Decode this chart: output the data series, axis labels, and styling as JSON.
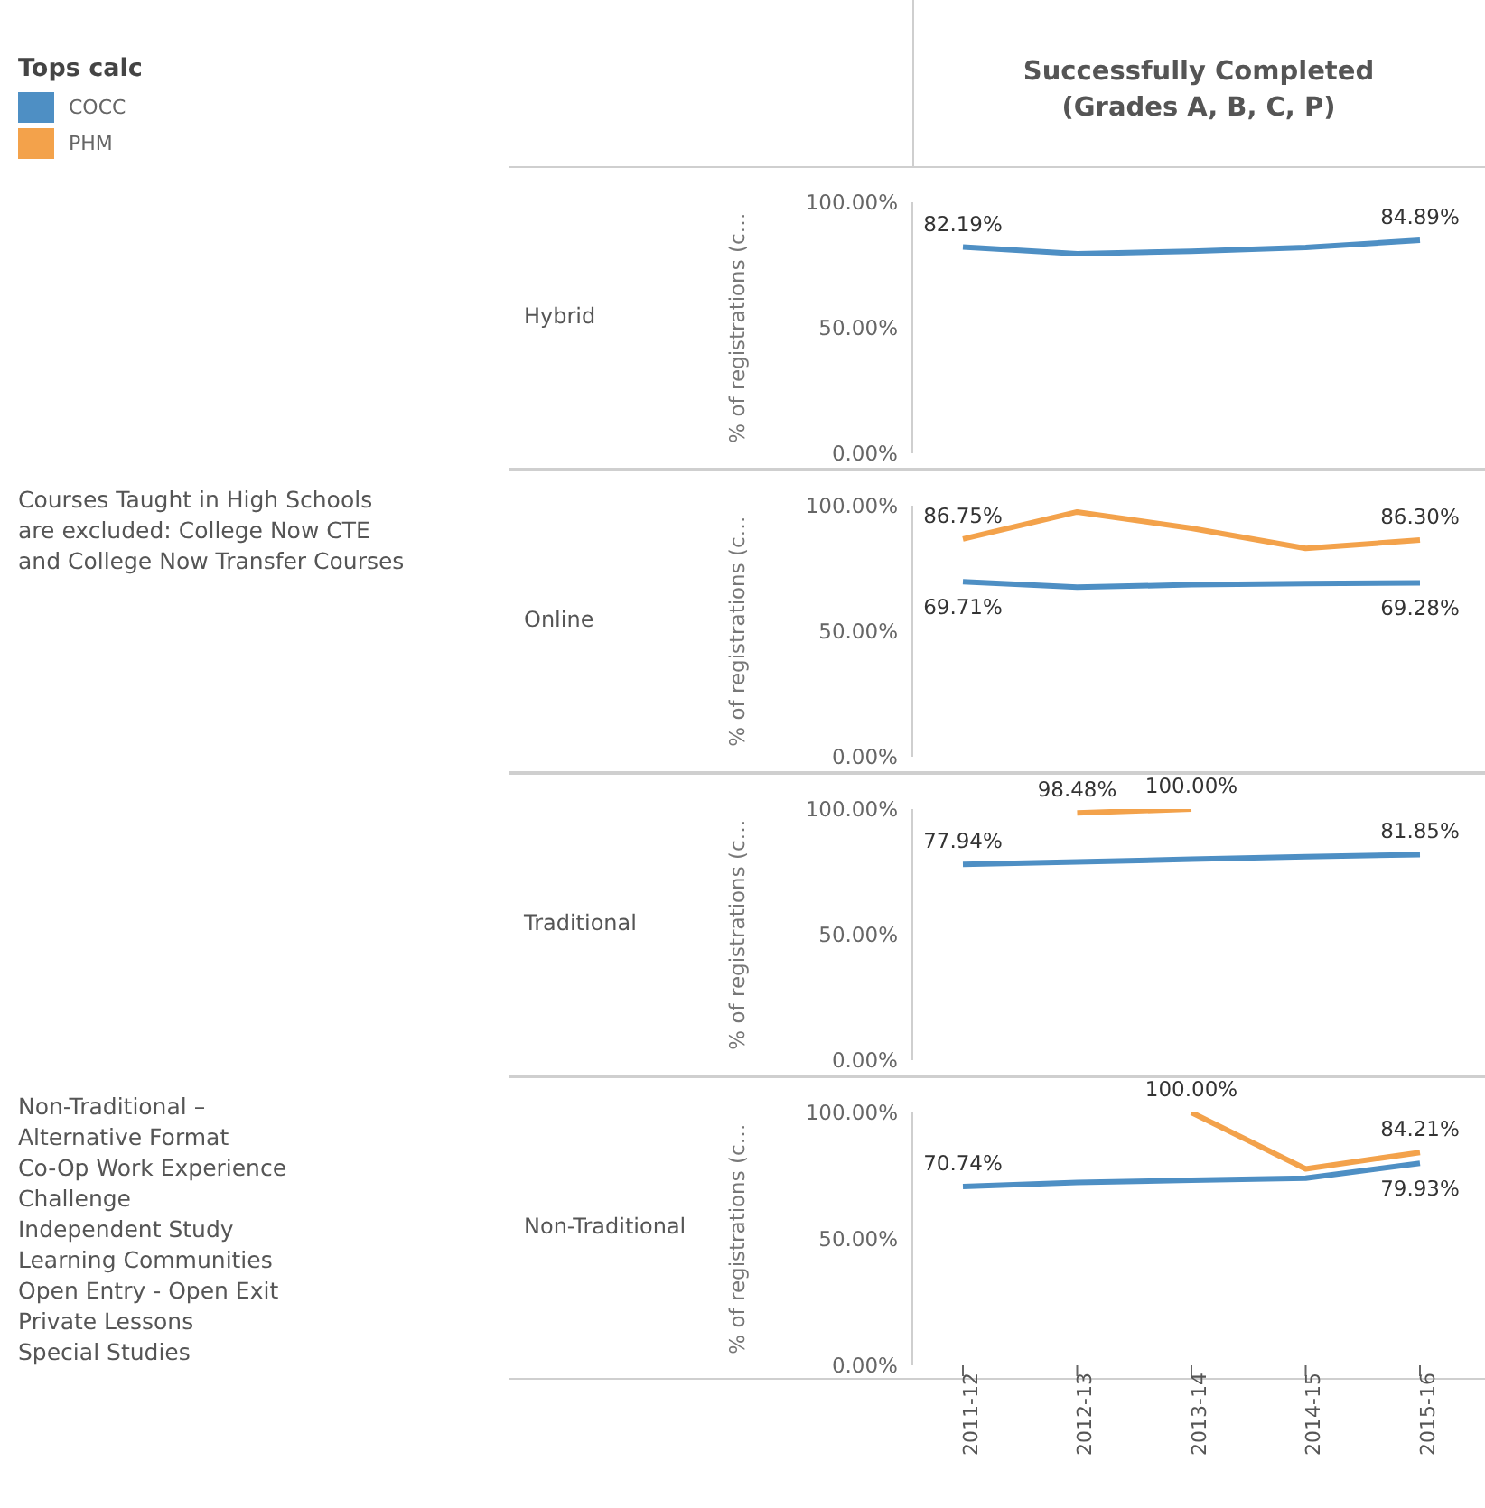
{
  "chart_data": [
    {
      "type": "line",
      "title": "Successfully Completed\n(Grades A, B, C, P)",
      "ylabel": "% of registrations (c…",
      "legend_title": "Tops calc",
      "legend": "left",
      "grid": false,
      "tick_labels": "y",
      "marker": "none",
      "categories": [
        "2011-12",
        "2012-13",
        "2013-14",
        "2014-15",
        "2015-16"
      ],
      "ylim": [
        0,
        100
      ],
      "yticks": [
        {
          "value": 0,
          "label": "0.00%"
        },
        {
          "value": 50,
          "label": "50.00%"
        },
        {
          "value": 100,
          "label": "100.00%"
        }
      ],
      "annotations": [
        "Hybrid"
      ],
      "series": [
        {
          "name": "COCC",
          "color": "#4e8fc4",
          "values": [
            82.19,
            79.5,
            80.5,
            82,
            84.89
          ],
          "value_labels": [
            "82.19%",
            null,
            null,
            null,
            "84.89%"
          ]
        },
        {
          "name": "PHM",
          "color": "#f3a24b",
          "values": [
            null,
            null,
            null,
            null,
            null
          ]
        }
      ]
    },
    {
      "type": "line",
      "ylabel": "% of registrations (c…",
      "grid": false,
      "tick_labels": "y",
      "marker": "none",
      "categories": [
        "2011-12",
        "2012-13",
        "2013-14",
        "2014-15",
        "2015-16"
      ],
      "ylim": [
        0,
        100
      ],
      "yticks": [
        {
          "value": 0,
          "label": "0.00%"
        },
        {
          "value": 50,
          "label": "50.00%"
        },
        {
          "value": 100,
          "label": "100.00%"
        }
      ],
      "annotations": [
        "Online",
        "Courses Taught in High Schools are excluded: College Now CTE and College Now Transfer Courses"
      ],
      "series": [
        {
          "color": "#4e8fc4",
          "values": [
            69.71,
            67.5,
            68.5,
            69,
            69.28
          ],
          "value_labels": [
            "69.71%",
            null,
            null,
            null,
            "69.28%"
          ]
        },
        {
          "color": "#f3a24b",
          "values": [
            86.75,
            97.5,
            91,
            83,
            86.3
          ],
          "value_labels": [
            "86.75%",
            null,
            null,
            null,
            "86.30%"
          ]
        }
      ]
    },
    {
      "type": "line",
      "ylabel": "% of registrations (c…",
      "grid": false,
      "tick_labels": "y",
      "marker": "none",
      "categories": [
        "2011-12",
        "2012-13",
        "2013-14",
        "2014-15",
        "2015-16"
      ],
      "ylim": [
        0,
        100
      ],
      "yticks": [
        {
          "value": 0,
          "label": "0.00%"
        },
        {
          "value": 50,
          "label": "50.00%"
        },
        {
          "value": 100,
          "label": "100.00%"
        }
      ],
      "annotations": [
        "Traditional"
      ],
      "series": [
        {
          "color": "#4e8fc4",
          "values": [
            77.94,
            79,
            80,
            81,
            81.85
          ],
          "value_labels": [
            "77.94%",
            null,
            null,
            null,
            "81.85%"
          ]
        },
        {
          "color": "#f3a24b",
          "values": [
            null,
            98.48,
            100,
            null,
            null
          ],
          "value_labels": [
            null,
            "98.48%",
            "100.00%",
            null,
            null
          ]
        }
      ]
    },
    {
      "type": "line",
      "ylabel": "% of registrations (c…",
      "grid": false,
      "marker": "none",
      "categories": [
        "2011-12",
        "2012-13",
        "2013-14",
        "2014-15",
        "2015-16"
      ],
      "ylim": [
        0,
        100
      ],
      "yticks": [
        {
          "value": 0,
          "label": "0.00%"
        },
        {
          "value": 50,
          "label": "50.00%"
        },
        {
          "value": 100,
          "label": "100.00%"
        }
      ],
      "annotations": [
        "Non-Traditional",
        "Non-Traditional –\nAlternative Format\nCo-Op Work Experience\nChallenge\nIndependent Study\nLearning Communities\nOpen Entry - Open Exit\nPrivate Lessons\nSpecial Studies"
      ],
      "series": [
        {
          "color": "#4e8fc4",
          "values": [
            70.74,
            72.3,
            73.2,
            74,
            79.93
          ],
          "value_labels": [
            "70.74%",
            null,
            null,
            null,
            "79.93%"
          ]
        },
        {
          "color": "#f3a24b",
          "values": [
            null,
            null,
            100,
            77.7,
            84.21
          ],
          "value_labels": [
            null,
            null,
            "100.00%",
            null,
            "84.21%"
          ]
        }
      ]
    }
  ]
}
